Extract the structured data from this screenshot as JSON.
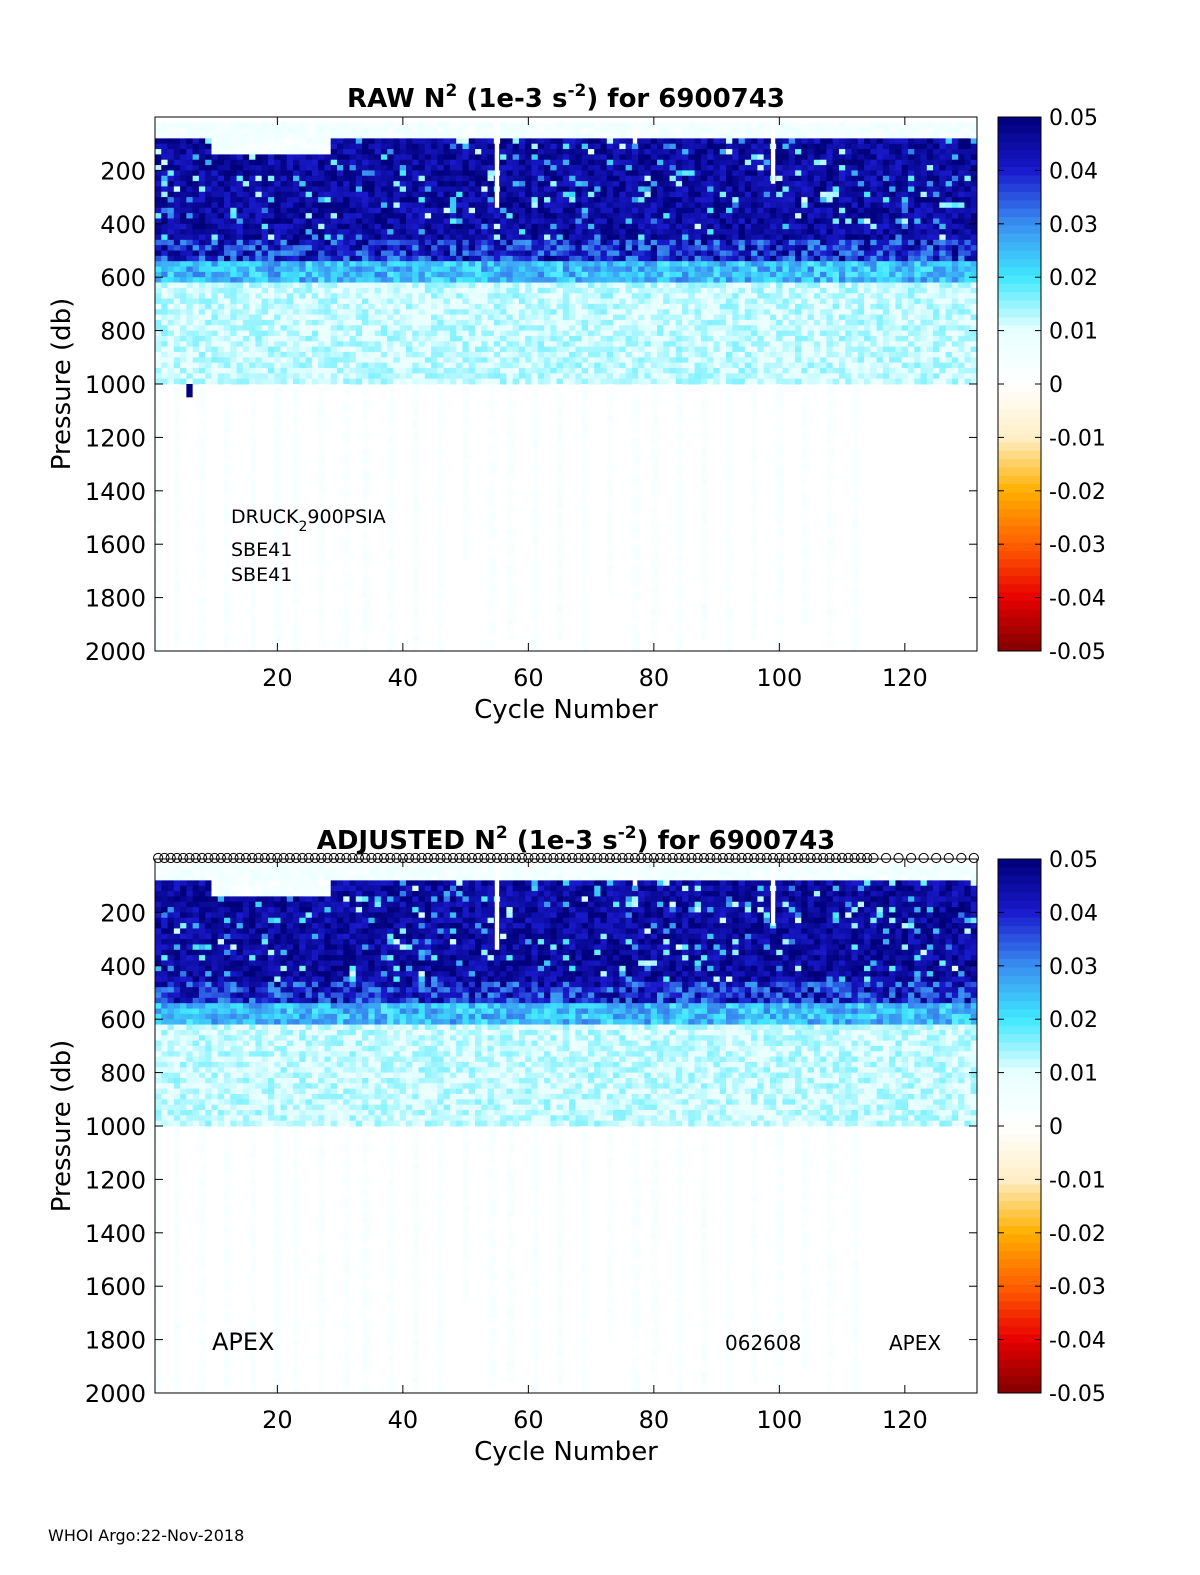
{
  "footer": "WHOI Argo:22-Nov-2018",
  "colorbar": {
    "ticks": [
      0.05,
      0.04,
      0.03,
      0.02,
      0.01,
      0,
      -0.01,
      -0.02,
      -0.03,
      -0.04,
      -0.05
    ],
    "tick_labels": [
      "0.05",
      "0.04",
      "0.03",
      "0.02",
      "0.01",
      "0",
      "-0.01",
      "-0.02",
      "-0.03",
      "-0.04",
      "-0.05"
    ],
    "range": [
      -0.05,
      0.05
    ],
    "colors": [
      "#800000",
      "#e80000",
      "#ff6000",
      "#ffb000",
      "#ffefc8",
      "#ffffff",
      "#e8ffff",
      "#40e8ff",
      "#3a8ef0",
      "#1a1acd",
      "#00007a"
    ]
  },
  "chart_data": [
    {
      "type": "heatmap",
      "title_parts": {
        "a": "RAW N",
        "sup1": "2",
        "b": " (1e-3 s",
        "sup2": "-2",
        "c": ") for 6900743"
      },
      "xlabel": "Cycle Number",
      "ylabel": "Pressure (db)",
      "xlim": [
        1,
        131
      ],
      "ylim": [
        2000,
        0
      ],
      "xticks": [
        20,
        40,
        60,
        80,
        100,
        120
      ],
      "xtick_labels": [
        "20",
        "40",
        "60",
        "80",
        "100",
        "120"
      ],
      "yticks": [
        200,
        400,
        600,
        800,
        1000,
        1200,
        1400,
        1600,
        1800,
        2000
      ],
      "ytick_labels": [
        "200",
        "400",
        "600",
        "800",
        "1000",
        "1200",
        "1400",
        "1600",
        "1800",
        "2000"
      ],
      "deep_profile_cycles": [
        1,
        4,
        8,
        12,
        16,
        20,
        23,
        27,
        31,
        34,
        38,
        42,
        46,
        50,
        54,
        57,
        61,
        65,
        69,
        73,
        77,
        80,
        84,
        88,
        92,
        96,
        100,
        104,
        108,
        112
      ],
      "deep_profile_max_pressure": [
        2000,
        2000,
        2000,
        2000,
        2000,
        2000,
        2000,
        2000,
        2000,
        2000,
        2000,
        2000,
        2000,
        1650,
        2000,
        1950,
        2000,
        1950,
        2000,
        1800,
        2000,
        1950,
        2000,
        1950,
        2000,
        1950,
        2000,
        1900,
        2000,
        2000
      ],
      "last_cycle_1000db": 131,
      "gaps": [
        {
          "cycle": 55,
          "to_pressure": 340
        },
        {
          "cycle": 77,
          "to_pressure": 100
        },
        {
          "cycle": 99,
          "to_pressure": 250
        }
      ],
      "annotations": [
        "DRUCK",
        "2",
        "900PSIA",
        "SBE41",
        "SBE41"
      ],
      "has_markers": false
    },
    {
      "type": "heatmap",
      "title_parts": {
        "a": "ADJUSTED N",
        "sup1": "2",
        "b": " (1e-3 s",
        "sup2": "-2",
        "c": ") for 6900743"
      },
      "xlabel": "Cycle Number",
      "ylabel": "Pressure (db)",
      "xlim": [
        1,
        131
      ],
      "ylim": [
        2000,
        0
      ],
      "xticks": [
        20,
        40,
        60,
        80,
        100,
        120
      ],
      "xtick_labels": [
        "20",
        "40",
        "60",
        "80",
        "100",
        "120"
      ],
      "yticks": [
        200,
        400,
        600,
        800,
        1000,
        1200,
        1400,
        1600,
        1800,
        2000
      ],
      "ytick_labels": [
        "200",
        "400",
        "600",
        "800",
        "1000",
        "1200",
        "1400",
        "1600",
        "1800",
        "2000"
      ],
      "deep_profile_cycles": [
        1,
        4,
        8,
        12,
        16,
        20,
        23,
        27,
        31,
        34,
        38,
        42,
        46,
        50,
        54,
        57,
        61,
        65,
        69,
        73,
        77,
        80,
        84,
        88,
        92,
        96,
        100,
        104,
        108,
        112
      ],
      "deep_profile_max_pressure": [
        2000,
        2000,
        2000,
        2000,
        2000,
        2000,
        2000,
        2000,
        2000,
        2000,
        2000,
        2000,
        2000,
        1650,
        2000,
        1950,
        2000,
        1950,
        2000,
        1800,
        2000,
        1950,
        2000,
        1950,
        2000,
        1950,
        2000,
        1900,
        2000,
        2000
      ],
      "last_cycle_1000db": 131,
      "gaps": [
        {
          "cycle": 55,
          "to_pressure": 340
        },
        {
          "cycle": 77,
          "to_pressure": 100
        },
        {
          "cycle": 99,
          "to_pressure": 250
        }
      ],
      "annotations": [
        "APEX",
        "062608",
        "APEX"
      ],
      "has_markers": true
    }
  ]
}
